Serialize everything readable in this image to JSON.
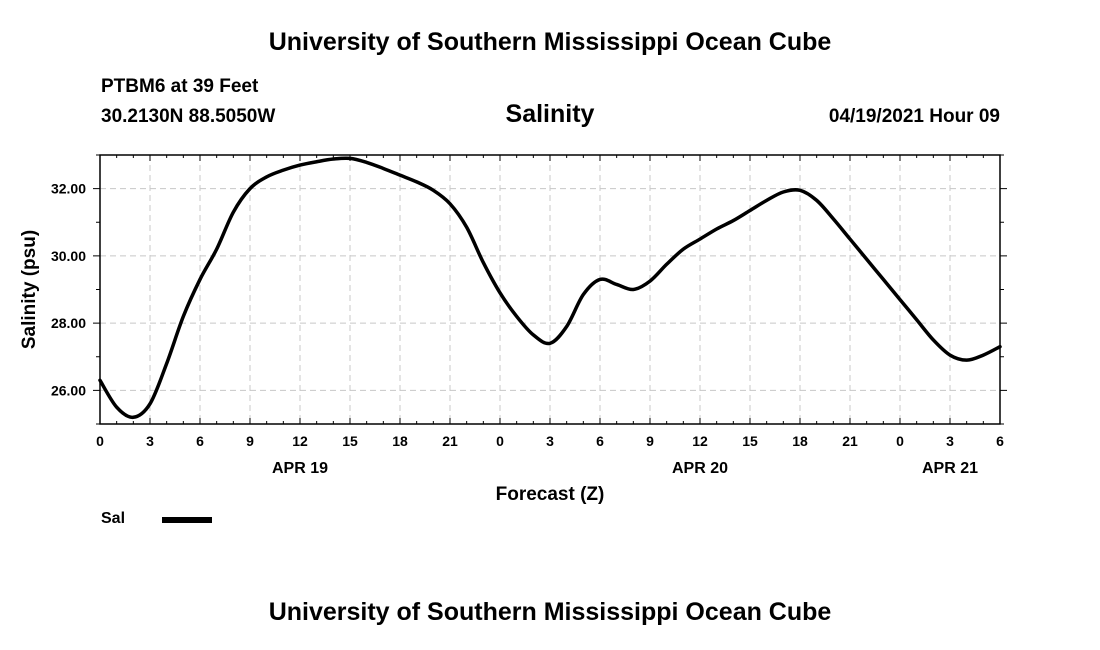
{
  "header": {
    "title": "University of Southern Mississippi Ocean Cube",
    "station": "PTBM6 at 39 Feet",
    "coordinates": "30.2130N  88.5050W",
    "timestamp": "04/19/2021 Hour 09"
  },
  "footer": {
    "title": "University of Southern Mississippi Ocean Cube"
  },
  "legend": {
    "label": "Sal"
  },
  "chart_data": {
    "type": "line",
    "title": "Salinity",
    "xlabel": "Forecast (Z)",
    "ylabel": "Salinity (psu)",
    "x_hours": [
      0,
      1,
      2,
      3,
      4,
      5,
      6,
      7,
      8,
      9,
      10,
      11,
      12,
      13,
      14,
      15,
      16,
      17,
      18,
      19,
      20,
      21,
      22,
      23,
      24,
      25,
      26,
      27,
      28,
      29,
      30,
      31,
      32,
      33,
      34,
      35,
      36,
      37,
      38,
      39,
      40,
      41,
      42,
      43,
      44,
      45,
      46,
      47,
      48,
      49,
      50,
      51,
      52,
      53,
      54
    ],
    "x_tick_labels": [
      "0",
      "3",
      "6",
      "9",
      "12",
      "15",
      "18",
      "21",
      "0",
      "3",
      "6",
      "9",
      "12",
      "15",
      "18",
      "21",
      "0",
      "3",
      "6"
    ],
    "x_tick_hours": [
      0,
      3,
      6,
      9,
      12,
      15,
      18,
      21,
      24,
      27,
      30,
      33,
      36,
      39,
      42,
      45,
      48,
      51,
      54
    ],
    "date_labels": [
      {
        "label": "APR 19",
        "hour": 12
      },
      {
        "label": "APR 20",
        "hour": 36
      },
      {
        "label": "APR 21",
        "hour": 51
      }
    ],
    "series": [
      {
        "name": "Sal",
        "color": "#000000",
        "values": [
          26.3,
          25.5,
          25.2,
          25.6,
          26.8,
          28.2,
          29.3,
          30.2,
          31.3,
          32.0,
          32.35,
          32.55,
          32.7,
          32.8,
          32.88,
          32.9,
          32.78,
          32.6,
          32.4,
          32.2,
          31.95,
          31.55,
          30.85,
          29.8,
          28.9,
          28.2,
          27.65,
          27.4,
          27.9,
          28.85,
          29.3,
          29.15,
          29.0,
          29.25,
          29.75,
          30.2,
          30.5,
          30.8,
          31.05,
          31.35,
          31.65,
          31.9,
          31.95,
          31.65,
          31.1,
          30.5,
          29.9,
          29.3,
          28.7,
          28.1,
          27.5,
          27.05,
          26.9,
          27.05,
          27.3
        ]
      }
    ],
    "ylim": [
      25.0,
      33.0
    ],
    "y_ticks": [
      "26.00",
      "28.00",
      "30.00",
      "32.00"
    ],
    "y_tick_values": [
      26,
      28,
      30,
      32
    ],
    "xlim": [
      0,
      54
    ],
    "grid": true,
    "legend_position": "bottom-left"
  }
}
